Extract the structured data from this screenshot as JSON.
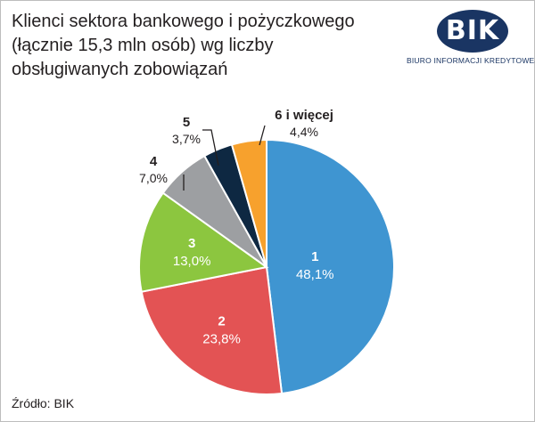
{
  "title_lines": [
    "Klienci sektora bankowego i pożyczkowego",
    "(łącznie 15,3 mln osób) wg liczby",
    "obsługiwanych zobowiązań"
  ],
  "logo": {
    "mark": "BIK",
    "subtitle": "BIURO INFORMACJI KREDYTOWEJ"
  },
  "source": "Źródło: BIK",
  "colors": {
    "brand": "#1a3563"
  },
  "chart_data": {
    "type": "pie",
    "title": "Klienci sektora bankowego i pożyczkowego (łącznie 15,3 mln osób) wg liczby obsługiwanych zobowiązań",
    "start": "12 o'clock, clockwise",
    "slices": [
      {
        "label": "1",
        "value": 48.1,
        "display": "48,1%",
        "color": "#3f95d1",
        "label_position": "inside"
      },
      {
        "label": "2",
        "value": 23.8,
        "display": "23,8%",
        "color": "#e35354",
        "label_position": "inside"
      },
      {
        "label": "3",
        "value": 13.0,
        "display": "13,0%",
        "color": "#8cc63f",
        "label_position": "inside"
      },
      {
        "label": "4",
        "value": 7.0,
        "display": "7,0%",
        "color": "#9d9fa2",
        "label_position": "outside"
      },
      {
        "label": "5",
        "value": 3.7,
        "display": "3,7%",
        "color": "#0e2842",
        "label_position": "outside"
      },
      {
        "label": "6 i więcej",
        "value": 4.4,
        "display": "4,4%",
        "color": "#f7a12d",
        "label_position": "outside"
      }
    ]
  }
}
